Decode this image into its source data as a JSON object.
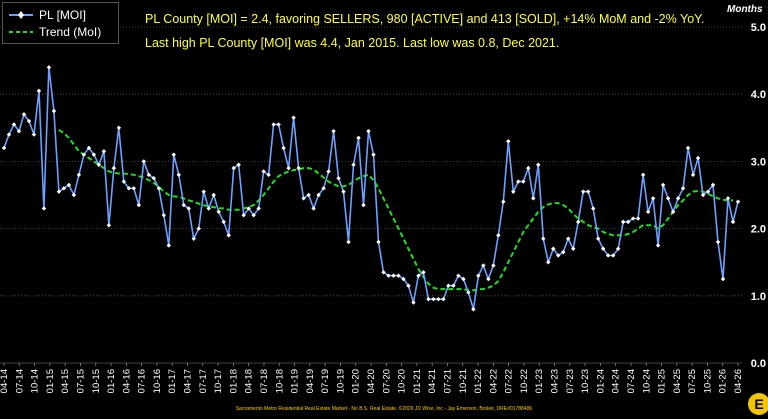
{
  "legend": {
    "moi_label": "PL [MOI]",
    "trend_label": "Trend (MoI)"
  },
  "headline": {
    "line1": "PL County [MOI] = 2.4, favoring SELLERS, 980 [ACTIVE] and 413 [SOLD], +14% MoM and -2% YoY.",
    "line2": "Last high PL County [MOI] was 4.4, Jan 2015. Last low was 0.8, Dec 2021."
  },
  "units_label": "Months",
  "footer": "Sacramento Metro Residential Real Estate Market - No B.S. Real Estate. ©2026 JD Wise, Inc - Jay Emerson, Broker, DRE#01788486",
  "colors": {
    "background": "#000000",
    "moi_line": "#6ea0ff",
    "moi_marker": "#ffffff",
    "trend_line": "#22dd22",
    "headline_text": "#ffff33",
    "grid": "#555555"
  },
  "chart_data": {
    "type": "line",
    "ylim": [
      0,
      5
    ],
    "y_ticks": [
      "0.0",
      "1.0",
      "2.0",
      "3.0",
      "4.0",
      "5.0"
    ],
    "y_axis_position": "right",
    "grid": "horizontal dotted",
    "legend_position": "top-left",
    "x_tick_labels": [
      "04-14",
      "07-14",
      "10-14",
      "01-15",
      "04-15",
      "07-15",
      "10-15",
      "01-16",
      "04-16",
      "07-16",
      "10-16",
      "01-17",
      "04-17",
      "07-17",
      "10-17",
      "01-18",
      "04-18",
      "07-18",
      "10-18",
      "01-19",
      "04-19",
      "07-19",
      "10-19",
      "01-20",
      "04-20",
      "07-20",
      "10-20",
      "01-21",
      "04-21",
      "07-21",
      "10-21",
      "01-22",
      "04-22",
      "07-22",
      "10-22",
      "01-23",
      "04-23",
      "07-23",
      "10-23",
      "01-24",
      "04-24",
      "07-24",
      "10-24",
      "01-25",
      "04-25",
      "07-25",
      "10-25",
      "01-26",
      "04-26"
    ],
    "series": [
      {
        "name": "PL [MOI]",
        "style": "solid line with white diamond markers",
        "values": [
          3.2,
          3.4,
          3.55,
          3.45,
          3.7,
          3.6,
          3.4,
          4.05,
          2.3,
          4.4,
          3.75,
          2.55,
          2.6,
          2.65,
          2.5,
          2.8,
          3.1,
          3.2,
          3.1,
          2.95,
          3.15,
          2.05,
          2.9,
          3.5,
          2.7,
          2.6,
          2.6,
          2.35,
          3.0,
          2.8,
          2.75,
          2.6,
          2.2,
          1.75,
          3.1,
          2.8,
          2.35,
          2.3,
          1.85,
          2.0,
          2.55,
          2.3,
          2.5,
          2.25,
          2.1,
          1.9,
          2.9,
          2.95,
          2.2,
          2.3,
          2.2,
          2.3,
          2.85,
          2.8,
          3.55,
          3.55,
          3.2,
          2.9,
          3.65,
          2.9,
          2.45,
          2.5,
          2.3,
          2.5,
          2.6,
          2.85,
          3.45,
          2.75,
          2.55,
          1.8,
          2.95,
          3.35,
          2.35,
          3.45,
          3.1,
          1.8,
          1.35,
          1.3,
          1.3,
          1.3,
          1.25,
          1.15,
          0.9,
          1.3,
          1.35,
          0.95,
          0.95,
          0.95,
          0.95,
          1.15,
          1.15,
          1.3,
          1.25,
          1.05,
          0.8,
          1.3,
          1.45,
          1.25,
          1.45,
          1.9,
          2.4,
          3.3,
          2.55,
          2.7,
          2.7,
          2.9,
          2.45,
          2.95,
          1.85,
          1.5,
          1.7,
          1.6,
          1.65,
          1.85,
          1.7,
          2.1,
          2.55,
          2.55,
          2.3,
          1.85,
          1.7,
          1.6,
          1.6,
          1.7,
          2.1,
          2.1,
          2.15,
          2.15,
          2.8,
          2.25,
          2.45,
          1.75,
          2.65,
          2.45,
          2.25,
          2.45,
          2.6,
          3.2,
          2.8,
          3.05,
          2.5,
          2.55,
          2.65,
          1.8,
          1.25,
          2.45,
          2.1,
          2.4
        ]
      },
      {
        "name": "Trend (MoI)",
        "style": "dashed smoothed",
        "values": [
          null,
          null,
          null,
          null,
          null,
          null,
          null,
          null,
          null,
          null,
          null,
          3.47,
          3.42,
          3.35,
          3.25,
          3.15,
          3.1,
          3.05,
          3.0,
          2.95,
          2.9,
          2.85,
          2.83,
          2.82,
          2.82,
          2.81,
          2.8,
          2.78,
          2.76,
          2.72,
          2.68,
          2.62,
          2.55,
          2.5,
          2.48,
          2.47,
          2.45,
          2.42,
          2.4,
          2.37,
          2.35,
          2.33,
          2.32,
          2.3,
          2.3,
          2.28,
          2.28,
          2.28,
          2.3,
          2.32,
          2.35,
          2.42,
          2.5,
          2.6,
          2.7,
          2.78,
          2.82,
          2.85,
          2.87,
          2.88,
          2.9,
          2.9,
          2.88,
          2.82,
          2.76,
          2.7,
          2.66,
          2.63,
          2.63,
          2.65,
          2.7,
          2.75,
          2.78,
          2.8,
          2.72,
          2.6,
          2.45,
          2.3,
          2.15,
          2.0,
          1.85,
          1.7,
          1.55,
          1.4,
          1.28,
          1.18,
          1.12,
          1.1,
          1.1,
          1.1,
          1.1,
          1.1,
          1.1,
          1.08,
          1.08,
          1.1,
          1.1,
          1.12,
          1.15,
          1.22,
          1.35,
          1.5,
          1.65,
          1.8,
          1.95,
          2.05,
          2.15,
          2.25,
          2.32,
          2.36,
          2.38,
          2.38,
          2.35,
          2.3,
          2.22,
          2.15,
          2.1,
          2.05,
          2.02,
          2.0,
          1.95,
          1.92,
          1.9,
          1.9,
          1.9,
          1.92,
          1.95,
          2.0,
          2.05,
          2.05,
          2.05,
          2.0,
          2.05,
          2.15,
          2.25,
          2.35,
          2.42,
          2.5,
          2.55,
          2.56,
          2.55,
          2.52,
          2.48,
          2.45,
          2.43,
          2.42,
          2.42
        ]
      }
    ]
  }
}
